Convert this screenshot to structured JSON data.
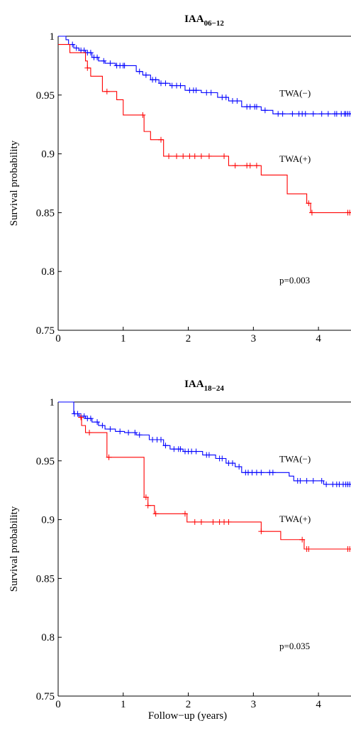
{
  "chart_data": [
    {
      "type": "line",
      "title_main": "IAA",
      "title_sub": "06−12",
      "xlabel": "",
      "ylabel": "Survival probability",
      "xlim": [
        0,
        4.5
      ],
      "ylim": [
        0.75,
        1.0
      ],
      "xticks": [
        "0",
        "1",
        "2",
        "3",
        "4"
      ],
      "yticks": [
        "0.75",
        "0.8",
        "0.85",
        "0.9",
        "0.95",
        "1"
      ],
      "pvalue": "p=0.003",
      "series": [
        {
          "name": "TWA(−)",
          "color": "#0000ff",
          "steps": [
            [
              0,
              1.0
            ],
            [
              0.12,
              0.997
            ],
            [
              0.16,
              0.993
            ],
            [
              0.24,
              0.99
            ],
            [
              0.32,
              0.988
            ],
            [
              0.42,
              0.986
            ],
            [
              0.52,
              0.982
            ],
            [
              0.62,
              0.979
            ],
            [
              0.72,
              0.977
            ],
            [
              0.88,
              0.975
            ],
            [
              1.2,
              0.97
            ],
            [
              1.3,
              0.967
            ],
            [
              1.42,
              0.963
            ],
            [
              1.55,
              0.96
            ],
            [
              1.62,
              0.96
            ],
            [
              1.72,
              0.958
            ],
            [
              1.95,
              0.954
            ],
            [
              2.2,
              0.952
            ],
            [
              2.45,
              0.948
            ],
            [
              2.62,
              0.945
            ],
            [
              2.82,
              0.94
            ],
            [
              3.12,
              0.937
            ],
            [
              3.3,
              0.934
            ],
            [
              4.5,
              0.934
            ]
          ],
          "censor_x": [
            0.22,
            0.28,
            0.35,
            0.4,
            0.45,
            0.5,
            0.55,
            0.6,
            0.7,
            0.8,
            0.9,
            0.95,
            1.0,
            1.02,
            1.25,
            1.35,
            1.45,
            1.5,
            1.58,
            1.65,
            1.75,
            1.82,
            1.88,
            2.02,
            2.08,
            2.12,
            2.28,
            2.35,
            2.52,
            2.58,
            2.68,
            2.75,
            2.9,
            2.95,
            3.02,
            3.05,
            3.18,
            3.38,
            3.45,
            3.6,
            3.7,
            3.75,
            3.8,
            3.92,
            4.05,
            4.15,
            4.25,
            4.28,
            4.35,
            4.4,
            4.42,
            4.45,
            4.48
          ]
        },
        {
          "name": "TWA(+)",
          "color": "#ff0000",
          "steps": [
            [
              0,
              0.993
            ],
            [
              0.18,
              0.986
            ],
            [
              0.42,
              0.979
            ],
            [
              0.45,
              0.973
            ],
            [
              0.5,
              0.966
            ],
            [
              0.68,
              0.953
            ],
            [
              0.9,
              0.946
            ],
            [
              1.0,
              0.933
            ],
            [
              1.32,
              0.919
            ],
            [
              1.42,
              0.912
            ],
            [
              1.62,
              0.898
            ],
            [
              2.62,
              0.89
            ],
            [
              3.12,
              0.882
            ],
            [
              3.52,
              0.866
            ],
            [
              3.82,
              0.858
            ],
            [
              3.88,
              0.85
            ],
            [
              4.5,
              0.85
            ]
          ],
          "censor_x": [
            0.45,
            0.75,
            1.3,
            1.58,
            1.7,
            1.82,
            1.92,
            2.02,
            2.1,
            2.2,
            2.32,
            2.55,
            2.72,
            2.9,
            2.95,
            3.05,
            3.85,
            3.9,
            4.45,
            4.48
          ]
        }
      ],
      "annotations": [
        {
          "text": "TWA(−)",
          "x": 3.4,
          "y": 0.949
        },
        {
          "text": "TWA(+)",
          "x": 3.4,
          "y": 0.893
        },
        {
          "text": "p=0.003",
          "x": 3.4,
          "y": 0.79
        }
      ]
    },
    {
      "type": "line",
      "title_main": "IAA",
      "title_sub": "18−24",
      "xlabel": "Follow−up (years)",
      "ylabel": "Survival probability",
      "xlim": [
        0,
        4.5
      ],
      "ylim": [
        0.75,
        1.0
      ],
      "xticks": [
        "0",
        "1",
        "2",
        "3",
        "4"
      ],
      "yticks": [
        "0.75",
        "0.8",
        "0.85",
        "0.9",
        "0.95",
        "1"
      ],
      "pvalue": "p=0.035",
      "series": [
        {
          "name": "TWA(−)",
          "color": "#0000ff",
          "steps": [
            [
              0,
              1.0
            ],
            [
              0.24,
              0.99
            ],
            [
              0.32,
              0.988
            ],
            [
              0.42,
              0.986
            ],
            [
              0.52,
              0.983
            ],
            [
              0.62,
              0.98
            ],
            [
              0.72,
              0.977
            ],
            [
              0.88,
              0.975
            ],
            [
              1.02,
              0.974
            ],
            [
              1.2,
              0.972
            ],
            [
              1.4,
              0.968
            ],
            [
              1.62,
              0.963
            ],
            [
              1.72,
              0.96
            ],
            [
              1.92,
              0.958
            ],
            [
              2.22,
              0.955
            ],
            [
              2.42,
              0.952
            ],
            [
              2.58,
              0.948
            ],
            [
              2.72,
              0.945
            ],
            [
              2.82,
              0.94
            ],
            [
              3.55,
              0.937
            ],
            [
              3.62,
              0.933
            ],
            [
              4.08,
              0.93
            ],
            [
              4.5,
              0.93
            ]
          ],
          "censor_x": [
            0.25,
            0.3,
            0.35,
            0.4,
            0.45,
            0.5,
            0.6,
            0.68,
            0.8,
            0.95,
            1.08,
            1.18,
            1.25,
            1.45,
            1.52,
            1.58,
            1.65,
            1.78,
            1.85,
            1.88,
            1.95,
            2.0,
            2.05,
            2.12,
            2.28,
            2.32,
            2.48,
            2.52,
            2.62,
            2.68,
            2.78,
            2.88,
            2.92,
            2.98,
            3.05,
            3.12,
            3.25,
            3.3,
            3.68,
            3.72,
            3.82,
            3.92,
            4.05,
            4.12,
            4.22,
            4.28,
            4.32,
            4.38,
            4.42,
            4.45,
            4.48
          ]
        },
        {
          "name": "TWA(+)",
          "color": "#ff0000",
          "steps": [
            [
              0.32,
              0.987
            ],
            [
              0.36,
              0.98
            ],
            [
              0.42,
              0.974
            ],
            [
              0.75,
              0.953
            ],
            [
              1.32,
              0.919
            ],
            [
              1.38,
              0.912
            ],
            [
              1.48,
              0.905
            ],
            [
              1.98,
              0.898
            ],
            [
              3.12,
              0.89
            ],
            [
              3.42,
              0.883
            ],
            [
              3.78,
              0.875
            ],
            [
              4.5,
              0.875
            ]
          ],
          "censor_x": [
            0.35,
            0.48,
            0.78,
            1.35,
            1.38,
            1.5,
            1.95,
            2.1,
            2.2,
            2.38,
            2.48,
            2.55,
            2.62,
            3.12,
            3.75,
            3.82,
            3.85,
            4.45,
            4.48
          ]
        }
      ],
      "annotations": [
        {
          "text": "TWA(−)",
          "x": 3.4,
          "y": 0.949
        },
        {
          "text": "TWA(+)",
          "x": 3.4,
          "y": 0.898
        },
        {
          "text": "p=0.035",
          "x": 3.4,
          "y": 0.79
        }
      ]
    }
  ]
}
